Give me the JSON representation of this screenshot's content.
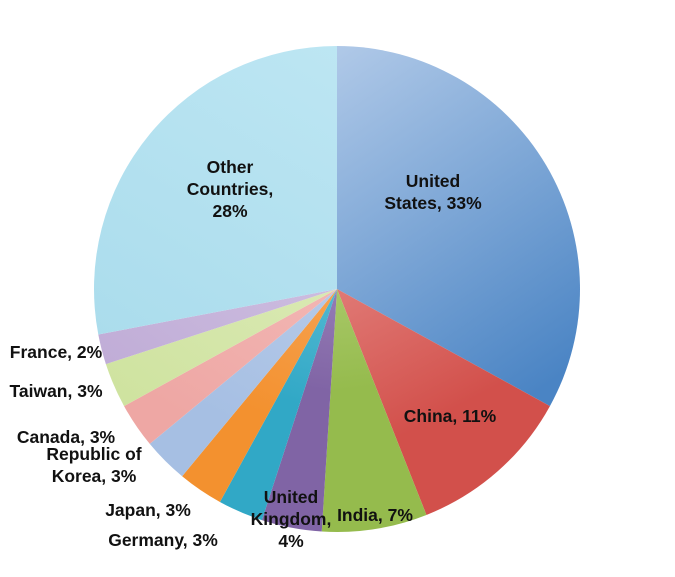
{
  "chart_data": {
    "type": "pie",
    "title": "",
    "legend": "none",
    "slices": [
      {
        "label": [
          "United",
          "States, 33%"
        ],
        "category": "United States",
        "value": 33,
        "color_light": "#b3cbe9",
        "color_dark": "#4a84c4"
      },
      {
        "label": [
          "China, 11%"
        ],
        "category": "China",
        "value": 11,
        "color_light": "#f4b3b0",
        "color_dark": "#d2504b"
      },
      {
        "label": [
          "India, 7%"
        ],
        "category": "India",
        "value": 7,
        "color_light": "#d5e6a8",
        "color_dark": "#95bb4d"
      },
      {
        "label": [
          "United",
          "Kingdom,",
          "4%"
        ],
        "category": "United Kingdom",
        "value": 4,
        "color_light": "#c5b4da",
        "color_dark": "#8064a5"
      },
      {
        "label": [
          "Germany, 3%"
        ],
        "category": "Germany",
        "value": 3,
        "color_light": "#92d6e6",
        "color_dark": "#31a8c6"
      },
      {
        "label": [
          "Japan, 3%"
        ],
        "category": "Japan",
        "value": 3,
        "color_light": "#fbbb82",
        "color_dark": "#f3912f"
      },
      {
        "label": [
          "Republic of",
          "Korea, 3%"
        ],
        "category": "Republic of Korea",
        "value": 3,
        "color_light": "#c9d8ef",
        "color_dark": "#a6bfe3"
      },
      {
        "label": [
          "Canada, 3%"
        ],
        "category": "Canada",
        "value": 3,
        "color_light": "#f7c7c5",
        "color_dark": "#eea7a4"
      },
      {
        "label": [
          "Taiwan, 3%"
        ],
        "category": "Taiwan",
        "value": 3,
        "color_light": "#e4efc6",
        "color_dark": "#cfe3a0"
      },
      {
        "label": [
          "France, 2%"
        ],
        "category": "France",
        "value": 2,
        "color_light": "#d9cde8",
        "color_dark": "#bfabd6"
      },
      {
        "label": [
          "Other",
          "Countries,",
          "28%"
        ],
        "category": "Other Countries",
        "value": 28,
        "color_light": "#bde6f3",
        "color_dark": "#aadcec"
      }
    ]
  }
}
